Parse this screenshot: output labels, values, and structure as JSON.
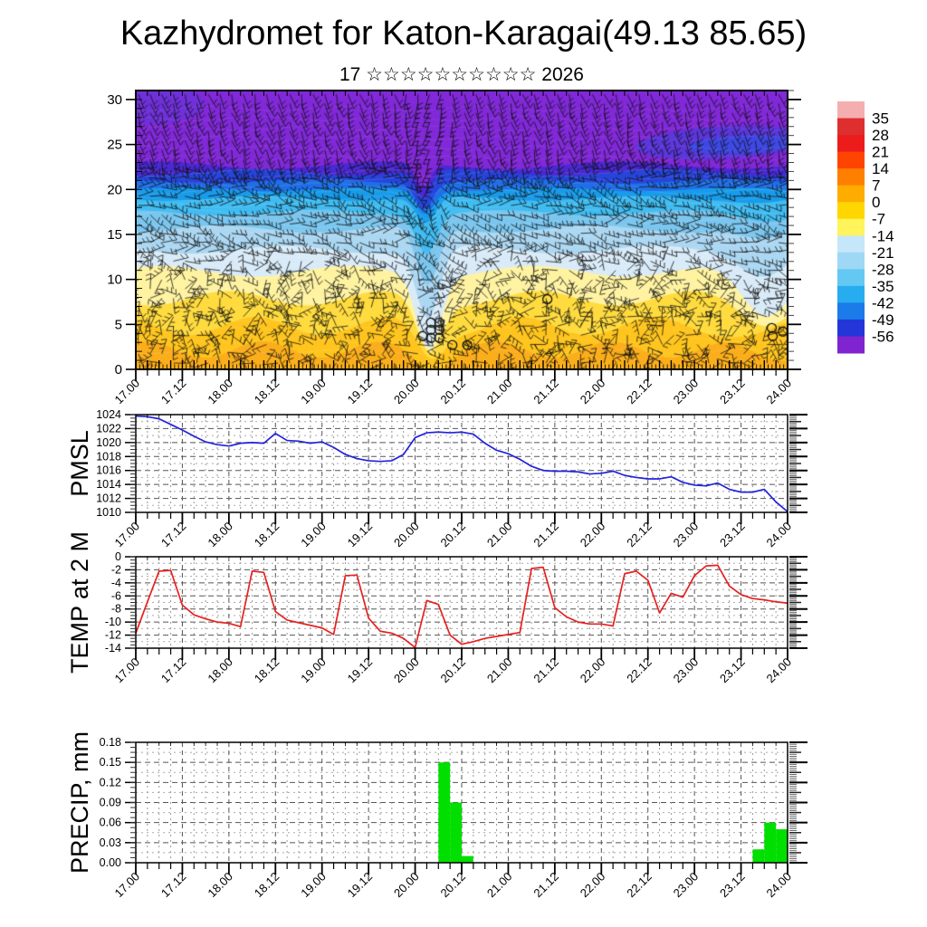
{
  "title": "Kazhydromet for Katon-Karagai(49.13 85.65)",
  "subtitle": {
    "text": "17 ☆☆☆☆☆☆☆☆☆☆ 2026"
  },
  "time_labels": [
    "17.00",
    "17.12",
    "18.00",
    "18.12",
    "19.00",
    "19.12",
    "20.00",
    "20.12",
    "21.00",
    "21.12",
    "22.00",
    "22.12",
    "23.00",
    "23.12",
    "24.00"
  ],
  "colorbar": {
    "ticks": [
      "35",
      "28",
      "21",
      "14",
      "7",
      "0",
      "-7",
      "-14",
      "-21",
      "-28",
      "-35",
      "-42",
      "-49",
      "-56"
    ],
    "cell_colors": [
      "#F5AEB0",
      "#DE2F2F",
      "#ED1C1C",
      "#FF4400",
      "#FF7F00",
      "#FFAC00",
      "#FFD600",
      "#FFF45C",
      "#C6E6F9",
      "#9FD8F5",
      "#63C9F2",
      "#27ACEF",
      "#1A7BE9",
      "#2337D9",
      "#7F24CE"
    ]
  },
  "cross_section": {
    "yticks": [
      0,
      5,
      10,
      15,
      20,
      25,
      30
    ],
    "ylim": [
      0,
      31
    ],
    "top_color": "#8128D8",
    "bands": [
      {
        "c": "#FBAE1C",
        "h": 2.2,
        "a": 0.9,
        "f": 0.8,
        "p": 1.0,
        "d1": 1.6,
        "d2": 0.5
      },
      {
        "c": "#FFC51E",
        "h": 4.8,
        "a": 1.0,
        "f": 0.7,
        "p": 2.2,
        "d1": 3.2,
        "d2": 1.0
      },
      {
        "c": "#FFDB3E",
        "h": 7.9,
        "a": 0.8,
        "f": 0.6,
        "p": 4.1,
        "d1": 5.7,
        "d2": 2.3
      },
      {
        "c": "#FFF3A2",
        "h": 10.9,
        "a": 0.6,
        "f": 0.5,
        "p": 0.7,
        "d1": 8.0,
        "d2": 5.0
      },
      {
        "c": "#D9EBF8",
        "h": 13.3,
        "a": 0.45,
        "f": 0.5,
        "p": 2.9,
        "d1": 7.7,
        "d2": 2.6
      },
      {
        "c": "#ABD7F2",
        "h": 15.6,
        "a": 0.4,
        "f": 0.5,
        "p": 5.0,
        "d1": 6.5,
        "d2": 1.4
      },
      {
        "c": "#7AC6EF",
        "h": 17.4,
        "a": 0.3,
        "f": 0.5,
        "p": 1.8,
        "d1": 4.3,
        "d2": 0.7
      },
      {
        "c": "#3FBCF2",
        "h": 19.0,
        "a": 0.25,
        "f": 0.5,
        "p": 3.6,
        "d1": 2.9,
        "d2": 0.4
      },
      {
        "c": "#189BEA",
        "h": 20.0,
        "a": 0.2,
        "f": 0.5,
        "p": 0.2,
        "d1": 2.6,
        "d2": 0
      },
      {
        "c": "#1F6FE8",
        "h": 20.9,
        "a": 0.25,
        "f": 0.45,
        "p": 2.5,
        "d1": 2.8,
        "d2": 0
      },
      {
        "c": "#2744DC",
        "h": 21.9,
        "a": 0.35,
        "f": 0.45,
        "p": 4.4,
        "d1": 3.0,
        "d2": 0
      },
      {
        "c": "#4A28D2",
        "h": 22.7,
        "a": 0.4,
        "f": 0.4,
        "p": 1.1,
        "d1": 2.6,
        "d2": 0
      }
    ],
    "circles": [
      [
        3.08,
        3.7
      ],
      [
        3.17,
        4.4
      ],
      [
        3.26,
        4.4
      ],
      [
        3.17,
        3.5
      ],
      [
        3.26,
        3.5
      ],
      [
        3.17,
        5.2
      ],
      [
        3.26,
        5.2
      ],
      [
        3.4,
        2.7
      ],
      [
        3.56,
        2.7
      ],
      [
        4.42,
        7.8
      ],
      [
        6.83,
        4.6
      ],
      [
        6.84,
        3.7
      ],
      [
        6.95,
        4.2
      ]
    ]
  },
  "chart_data": [
    {
      "type": "heatmap",
      "name": "temperature-height cross-section with wind barbs",
      "x_labels": [
        "17.00",
        "17.12",
        "18.00",
        "18.12",
        "19.00",
        "19.12",
        "20.00",
        "20.12",
        "21.00",
        "21.12",
        "22.00",
        "22.12",
        "23.00",
        "23.12",
        "24.00"
      ],
      "ylim": [
        0,
        31
      ],
      "yticks": [
        0,
        5,
        10,
        15,
        20,
        25,
        30
      ],
      "colorbar_ticks": [
        35,
        28,
        21,
        14,
        7,
        0,
        -7,
        -14,
        -21,
        -28,
        -35,
        -42,
        -49,
        -56
      ],
      "features": "warm yellow layer below ~11km, cold blue/purple aloft, deep cold intrusion near 20.00-20.12 with cloud circles at 2-5km, secondary sag and circles near 23.12-24.00, dark-blue warm blob 23-27km at right"
    },
    {
      "type": "line",
      "name": "PMSL",
      "color": "#2222DD",
      "ylim": [
        1010,
        1024
      ],
      "yticks": [
        1024,
        1022,
        1020,
        1018,
        1016,
        1014,
        1012,
        1010
      ],
      "x_start": "17.00",
      "x_step_hours": 3,
      "values": [
        1023.8,
        1023.7,
        1023.4,
        1022.6,
        1021.8,
        1020.9,
        1020.1,
        1019.7,
        1019.5,
        1019.9,
        1020.0,
        1019.9,
        1021.3,
        1020.3,
        1020.2,
        1019.9,
        1020.1,
        1019.3,
        1018.3,
        1017.7,
        1017.4,
        1017.3,
        1017.4,
        1018.3,
        1020.7,
        1021.4,
        1021.5,
        1021.4,
        1021.5,
        1021.2,
        1019.9,
        1018.9,
        1018.4,
        1017.6,
        1016.6,
        1016.0,
        1015.9,
        1015.9,
        1015.8,
        1015.5,
        1015.6,
        1015.9,
        1015.3,
        1015.0,
        1014.8,
        1014.8,
        1015.1,
        1014.3,
        1013.9,
        1013.8,
        1014.2,
        1013.3,
        1012.9,
        1012.9,
        1013.3,
        1011.5,
        1010.1
      ]
    },
    {
      "type": "line",
      "name": "TEMP at 2 M",
      "color": "#E82020",
      "ylim": [
        -14,
        0
      ],
      "yticks": [
        0,
        -2,
        -4,
        -6,
        -8,
        -10,
        -12,
        -14
      ],
      "x_start": "17.00",
      "x_step_hours": 3,
      "values": [
        -11.7,
        -6.9,
        -2.2,
        -2.1,
        -7.4,
        -8.9,
        -9.5,
        -10.0,
        -10.2,
        -10.7,
        -2.2,
        -2.4,
        -8.4,
        -9.7,
        -10.1,
        -10.5,
        -10.9,
        -11.9,
        -2.9,
        -2.8,
        -9.4,
        -11.4,
        -11.7,
        -12.5,
        -13.9,
        -6.7,
        -7.3,
        -12.0,
        -13.4,
        -13.0,
        -12.5,
        -12.2,
        -11.9,
        -11.6,
        -1.8,
        -1.6,
        -7.8,
        -9.2,
        -10.0,
        -10.3,
        -10.3,
        -10.6,
        -2.6,
        -2.2,
        -3.6,
        -8.6,
        -5.6,
        -6.2,
        -2.9,
        -1.4,
        -1.3,
        -4.5,
        -5.8,
        -6.4,
        -6.6,
        -6.9,
        -7.1
      ]
    },
    {
      "type": "bar",
      "name": "PRECIP, mm",
      "color": "#00DF00",
      "ylim": [
        0,
        0.18
      ],
      "yticks": [
        "0.18",
        "0.15",
        "0.12",
        "0.09",
        "0.06",
        "0.03",
        "0.00"
      ],
      "x_start": "17.00",
      "x_step_hours": 3,
      "values": [
        0,
        0,
        0,
        0,
        0,
        0,
        0,
        0,
        0,
        0,
        0,
        0,
        0,
        0,
        0,
        0,
        0,
        0,
        0,
        0,
        0,
        0,
        0,
        0,
        0,
        0,
        0.15,
        0.09,
        0.01,
        0,
        0,
        0,
        0,
        0,
        0,
        0,
        0,
        0,
        0,
        0,
        0,
        0,
        0,
        0,
        0,
        0,
        0,
        0,
        0,
        0,
        0,
        0,
        0,
        0.02,
        0.06,
        0.05,
        0
      ]
    }
  ]
}
